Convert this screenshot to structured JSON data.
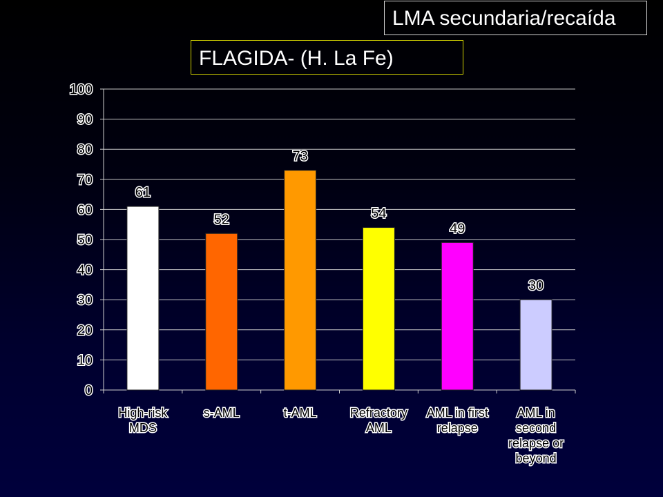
{
  "header": {
    "top_title": "LMA secundaria/recaída",
    "sub_title": "FLAGIDA- (H. La Fe)"
  },
  "chart_data": {
    "type": "bar",
    "categories": [
      [
        "High-risk",
        "MDS"
      ],
      [
        "s-AML"
      ],
      [
        "t-AML"
      ],
      [
        "Refractory",
        "AML"
      ],
      [
        "AML in first",
        "relapse"
      ],
      [
        "AML in",
        "second",
        "relapse or",
        "beyond"
      ]
    ],
    "values": [
      61,
      52,
      73,
      54,
      49,
      30
    ],
    "bar_colors": [
      "#ffffff",
      "#ff6600",
      "#ff9900",
      "#ffff00",
      "#ff00ff",
      "#ccccff"
    ],
    "title": "",
    "xlabel": "",
    "ylabel": "",
    "ylim": [
      0,
      100
    ],
    "yticks": [
      0,
      10,
      20,
      30,
      40,
      50,
      60,
      70,
      80,
      90,
      100
    ],
    "grid": true,
    "legend": "none"
  }
}
